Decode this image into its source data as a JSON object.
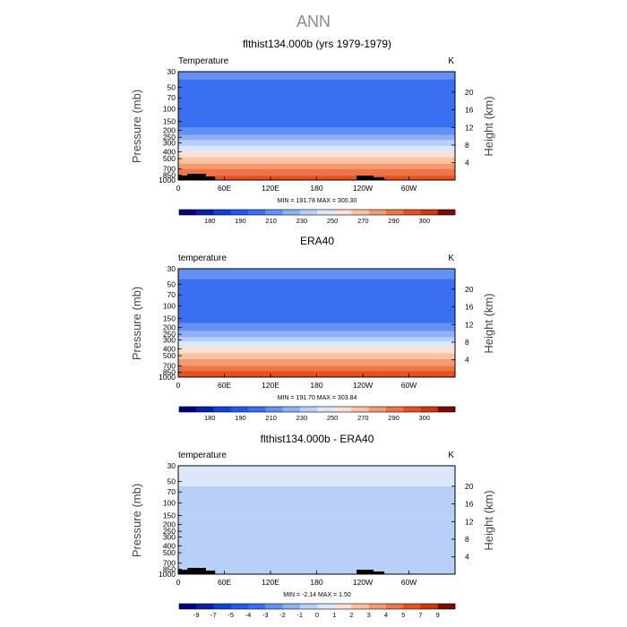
{
  "figure": {
    "title": "ANN"
  },
  "chart_data": [
    {
      "type": "heatmap",
      "title": "flthist134.000b (yrs 1979-1979)",
      "field_label": "Temperature",
      "units_label": "K",
      "ylabel": "Pressure (mb)",
      "ylabel_right": "Height (km)",
      "stats_text": "MIN = 191.78   MAX = 300.30",
      "min": 191.78,
      "max": 300.3,
      "y_ticks": [
        "30",
        "50",
        "70",
        "100",
        "150",
        "200",
        "250",
        "300",
        "400",
        "500",
        "700",
        "850",
        "1000"
      ],
      "y_tick_values": [
        30,
        50,
        70,
        100,
        150,
        200,
        250,
        300,
        400,
        500,
        700,
        850,
        1000
      ],
      "y2_ticks": [
        "20",
        "16",
        "12",
        "8",
        "4"
      ],
      "y2_tick_values": [
        20,
        16,
        12,
        8,
        4
      ],
      "x_ticks": [
        "0",
        "60E",
        "120E",
        "180",
        "120W",
        "60W"
      ],
      "x_tick_values": [
        0,
        60,
        120,
        180,
        240,
        300
      ],
      "xlim": [
        0,
        360
      ],
      "ylim": [
        1000,
        30
      ],
      "colorbar_labels": [
        "180",
        "190",
        "210",
        "230",
        "250",
        "270",
        "290",
        "300"
      ],
      "colorbar_colors": [
        "#000080",
        "#0a1fa8",
        "#1440d6",
        "#2258f0",
        "#3a6ff2",
        "#6391f4",
        "#8fb1f6",
        "#b8cff8",
        "#dce8fa",
        "#fbe2d2",
        "#f8c2a3",
        "#f49b73",
        "#ef7548",
        "#e9501f",
        "#c93b0b",
        "#7a0c00"
      ],
      "profile": [
        {
          "p": 30,
          "v": 216
        },
        {
          "p": 50,
          "v": 212
        },
        {
          "p": 70,
          "v": 210
        },
        {
          "p": 100,
          "v": 206
        },
        {
          "p": 150,
          "v": 209
        },
        {
          "p": 200,
          "v": 218
        },
        {
          "p": 250,
          "v": 226
        },
        {
          "p": 300,
          "v": 236
        },
        {
          "p": 400,
          "v": 249
        },
        {
          "p": 500,
          "v": 259
        },
        {
          "p": 700,
          "v": 274
        },
        {
          "p": 850,
          "v": 282
        },
        {
          "p": 1000,
          "v": 289
        }
      ],
      "topography": [
        [
          0,
          12,
          5
        ],
        [
          12,
          36,
          7
        ],
        [
          36,
          48,
          4
        ],
        [
          232,
          254,
          5
        ],
        [
          254,
          268,
          3
        ]
      ]
    },
    {
      "type": "heatmap",
      "title": "ERA40",
      "field_label": "temperature",
      "units_label": "K",
      "ylabel": "Pressure (mb)",
      "ylabel_right": "Height (km)",
      "stats_text": "MIN = 191.70   MAX = 303.84",
      "min": 191.7,
      "max": 303.84,
      "y_ticks": [
        "30",
        "50",
        "70",
        "100",
        "150",
        "200",
        "250",
        "300",
        "400",
        "500",
        "700",
        "850",
        "1000"
      ],
      "y_tick_values": [
        30,
        50,
        70,
        100,
        150,
        200,
        250,
        300,
        400,
        500,
        700,
        850,
        1000
      ],
      "y2_ticks": [
        "20",
        "16",
        "12",
        "8",
        "4"
      ],
      "y2_tick_values": [
        20,
        16,
        12,
        8,
        4
      ],
      "x_ticks": [
        "0",
        "60E",
        "120E",
        "180",
        "120W",
        "60W"
      ],
      "x_tick_values": [
        0,
        60,
        120,
        180,
        240,
        300
      ],
      "xlim": [
        0,
        360
      ],
      "ylim": [
        1000,
        30
      ],
      "colorbar_labels": [
        "180",
        "190",
        "210",
        "230",
        "250",
        "270",
        "290",
        "300"
      ],
      "colorbar_colors": [
        "#000080",
        "#0a1fa8",
        "#1440d6",
        "#2258f0",
        "#3a6ff2",
        "#6391f4",
        "#8fb1f6",
        "#b8cff8",
        "#dce8fa",
        "#fbe2d2",
        "#f8c2a3",
        "#f49b73",
        "#ef7548",
        "#e9501f",
        "#c93b0b",
        "#7a0c00"
      ],
      "profile": [
        {
          "p": 30,
          "v": 217
        },
        {
          "p": 50,
          "v": 213
        },
        {
          "p": 70,
          "v": 211
        },
        {
          "p": 100,
          "v": 207
        },
        {
          "p": 150,
          "v": 210
        },
        {
          "p": 200,
          "v": 219
        },
        {
          "p": 250,
          "v": 227
        },
        {
          "p": 300,
          "v": 237
        },
        {
          "p": 400,
          "v": 250
        },
        {
          "p": 500,
          "v": 260
        },
        {
          "p": 700,
          "v": 275
        },
        {
          "p": 850,
          "v": 284
        },
        {
          "p": 1000,
          "v": 291
        }
      ],
      "topography": []
    },
    {
      "type": "heatmap",
      "title": "flthist134.000b - ERA40",
      "field_label": "temperature",
      "units_label": "K",
      "ylabel": "Pressure (mb)",
      "ylabel_right": "Height (km)",
      "stats_text": "MIN = -2.14   MAX = 1.50",
      "min": -2.14,
      "max": 1.5,
      "y_ticks": [
        "30",
        "50",
        "70",
        "100",
        "150",
        "200",
        "250",
        "300",
        "400",
        "500",
        "700",
        "850",
        "1000"
      ],
      "y_tick_values": [
        30,
        50,
        70,
        100,
        150,
        200,
        250,
        300,
        400,
        500,
        700,
        850,
        1000
      ],
      "y2_ticks": [
        "20",
        "16",
        "12",
        "8",
        "4"
      ],
      "y2_tick_values": [
        20,
        16,
        12,
        8,
        4
      ],
      "x_ticks": [
        "0",
        "60E",
        "120E",
        "180",
        "120W",
        "60W"
      ],
      "x_tick_values": [
        0,
        60,
        120,
        180,
        240,
        300
      ],
      "xlim": [
        0,
        360
      ],
      "ylim": [
        1000,
        30
      ],
      "colorbar_labels": [
        "-9",
        "-7",
        "-5",
        "-4",
        "-3",
        "-2",
        "-1",
        "0",
        "1",
        "2",
        "3",
        "4",
        "5",
        "7",
        "9"
      ],
      "colorbar_colors": [
        "#000080",
        "#0a1fa8",
        "#1440d6",
        "#2258f0",
        "#3a6ff2",
        "#6391f4",
        "#8fb1f6",
        "#b8cff8",
        "#dce8fa",
        "#fbe2d2",
        "#f8c2a3",
        "#f49b73",
        "#ef7548",
        "#e9501f",
        "#c93b0b",
        "#7a0c00"
      ],
      "regions": [
        {
          "p_top": 30,
          "p_bot": 58,
          "v": 0.4
        },
        {
          "p_top": 58,
          "p_bot": 165,
          "v": -0.8
        },
        {
          "p_top": 165,
          "p_bot": 1000,
          "v": -0.4
        }
      ],
      "topography": [
        [
          0,
          12,
          5
        ],
        [
          12,
          36,
          7
        ],
        [
          36,
          48,
          4
        ],
        [
          232,
          254,
          5
        ],
        [
          254,
          268,
          3
        ]
      ]
    }
  ]
}
